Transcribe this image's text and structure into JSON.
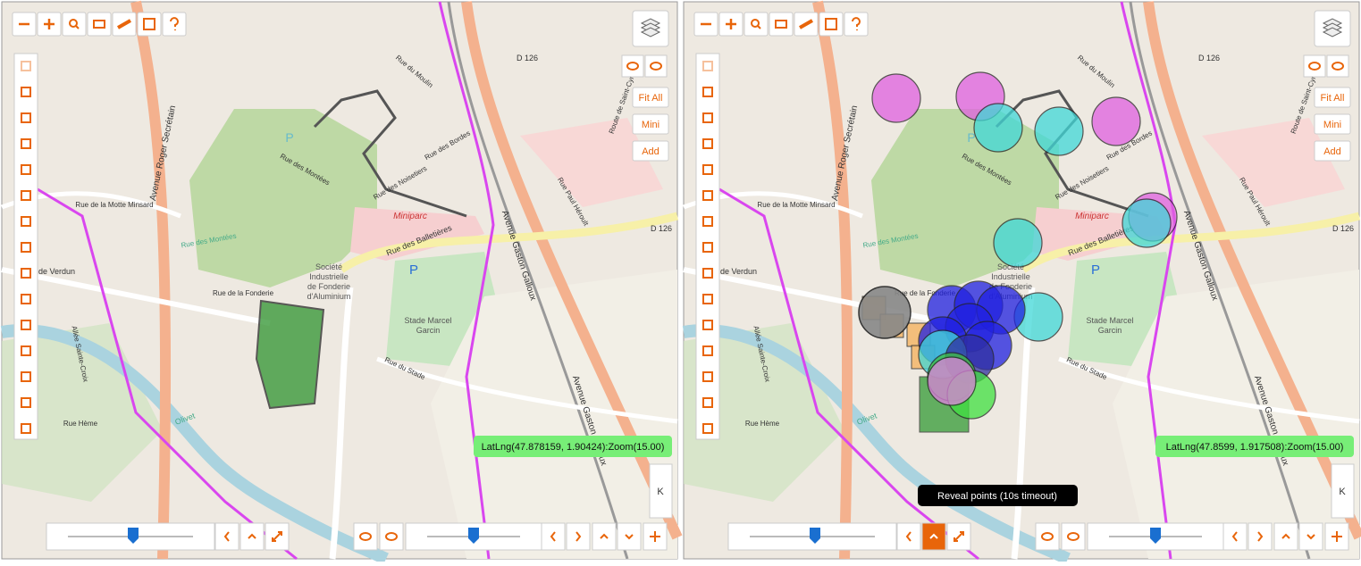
{
  "panels": [
    {
      "buttons": {
        "fit_all": "Fit All",
        "mini": "Mini",
        "add": "Add"
      },
      "coords": "LatLng(47.878159, 1.90424):Zoom(15.00)",
      "side_key": "K"
    },
    {
      "buttons": {
        "fit_all": "Fit All",
        "mini": "Mini",
        "add": "Add"
      },
      "coords": "LatLng(47.8599, 1.917508):Zoom(15.00)",
      "side_key": "K",
      "tooltip": "Reveal points (10s timeout)"
    }
  ],
  "map_labels": [
    "Avenue Roger Secrétain",
    "Avenue Gaston Galloux",
    "Avenue Gaston Galloux",
    "Rue des Montées",
    "Miniparc",
    "Rue des Balletières",
    "Société",
    "Industrielle",
    "de Fonderie",
    "d'Aluminium",
    "Stade Marcel",
    "Garcin",
    "Rue de Verdun",
    "Rue de la Fonderie",
    "Rue du Stade",
    "D 126",
    "D 126",
    "Rue de la Motte Minsard",
    "Rue des Noisetiers",
    "Rue des Bordes",
    "Rue du Moulin",
    "Rue Paul Héroult",
    "Route de Saint-Cyr en Val",
    "Allée Sainte-Croix",
    "Olivet",
    "Rue Hème",
    "Rue des Montées",
    "P",
    "P"
  ]
}
